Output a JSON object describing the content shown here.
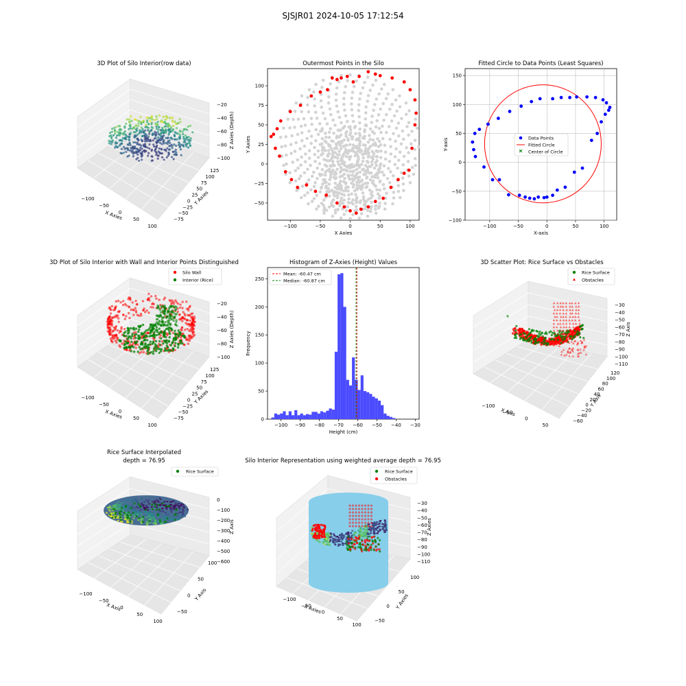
{
  "figure": {
    "suptitle": "SJSJR01 2024-10-05 17:12:54",
    "colors": {
      "wall": "#ff0000",
      "interior": "#008000",
      "gray": "#d3d3d3",
      "blue": "#0000ff",
      "hist": "#4b4bff",
      "silo": "#87ceeb"
    }
  },
  "chart_data": [
    {
      "id": "p1",
      "type": "scatter3d",
      "title": "3D Plot of Silo Interior(row data)",
      "xlabel": "X Axies",
      "ylabel": "Y Axies",
      "zlabel": "Z Axies (Depth)",
      "xticks": [
        "−100",
        "−50",
        "0",
        "50",
        "100"
      ],
      "yticks": [
        "−75",
        "−50",
        "−25",
        "0",
        "25",
        "50",
        "75",
        "100",
        "125"
      ],
      "zticks": [
        "−20",
        "−40",
        "−60",
        "−80",
        "−100"
      ],
      "zlim": [
        -110,
        -20
      ],
      "colormap": "viridis"
    },
    {
      "id": "p2",
      "type": "scatter",
      "title": "Outermost Points in the Silo",
      "xlabel": "X Axies",
      "ylabel": "Y Axies",
      "xlim": [
        -138,
        115
      ],
      "ylim": [
        -72,
        122
      ],
      "xticks": [
        -100,
        -50,
        0,
        50,
        100
      ],
      "yticks": [
        -50,
        -25,
        0,
        25,
        50,
        75,
        100
      ],
      "series": [
        {
          "kind": "all_points",
          "color": "#d3d3d3"
        },
        {
          "kind": "outermost",
          "color": "#ff0000",
          "x": [
            -132,
            -125,
            -118,
            -108,
            -98,
            -88,
            -73,
            -58,
            -40,
            -22,
            -10,
            0,
            10,
            18,
            30,
            42,
            55,
            68,
            80,
            90,
            98,
            103,
            108,
            110,
            108,
            100,
            90,
            70,
            50,
            42,
            30,
            15,
            5,
            -5,
            -15,
            -22,
            -30,
            -38,
            -50,
            -65,
            -83,
            -100,
            -116,
            -122,
            -128
          ],
          "y": [
            35,
            20,
            10,
            -10,
            -20,
            -30,
            -27,
            -35,
            -40,
            -50,
            -55,
            -60,
            -63,
            -58,
            -55,
            -48,
            -44,
            -30,
            -20,
            -12,
            -8,
            20,
            50,
            65,
            82,
            95,
            105,
            110,
            113,
            115,
            118,
            112,
            105,
            112,
            110,
            108,
            110,
            95,
            92,
            87,
            75,
            67,
            55,
            45,
            38
          ]
        }
      ]
    },
    {
      "id": "p3",
      "type": "scatter+fit",
      "title": "Fitted Circle to Data Points (Least Squares)",
      "xlabel": "X-axis",
      "ylabel": "Y-axis",
      "xlim": [
        -143,
        122
      ],
      "ylim": [
        -100,
        162
      ],
      "xticks": [
        -100,
        -50,
        0,
        50,
        100
      ],
      "yticks": [
        -100,
        -50,
        0,
        50,
        100,
        150
      ],
      "legend": [
        "Data Points",
        "Fitted Circle",
        "Center of Circle"
      ],
      "circle": {
        "cx": -7,
        "cy": 32,
        "r": 102
      },
      "center": {
        "x": -7,
        "y": 32
      },
      "points_x": [
        -130,
        -128,
        -125,
        -110,
        -95,
        -83,
        -67,
        -48,
        -38,
        -30,
        -22,
        -15,
        -5,
        0,
        10,
        18,
        32,
        48,
        62,
        78,
        88,
        95,
        102,
        108,
        110,
        104,
        98,
        85,
        70,
        52,
        40,
        25,
        10,
        -12,
        -27,
        -45,
        -65,
        -85,
        -103,
        -118,
        -126
      ],
      "points_y": [
        35,
        22,
        10,
        -8,
        -30,
        -30,
        -56,
        -57,
        -60,
        -62,
        -63,
        -60,
        -61,
        -60,
        -57,
        -48,
        -43,
        -17,
        -10,
        38,
        50,
        70,
        83,
        90,
        95,
        103,
        108,
        112,
        113,
        113,
        112,
        112,
        110,
        110,
        105,
        97,
        88,
        76,
        66,
        57,
        50
      ]
    },
    {
      "id": "p4",
      "type": "scatter3d",
      "title": "3D Plot of Silo Interior with Wall and Interior Points Distinguished",
      "xlabel": "X Axies",
      "ylabel": "Y Axies",
      "zlabel": "Z Axies (Depth)",
      "xticks": [
        "−100",
        "−50",
        "0",
        "50",
        "100"
      ],
      "yticks": [
        "−75",
        "−50",
        "−25",
        "0",
        "25",
        "50",
        "75",
        "100",
        "125"
      ],
      "zticks": [
        "−20",
        "−40",
        "−60",
        "−80",
        "−100"
      ],
      "legend": [
        "Silo Wall",
        "Interior (Rice)"
      ]
    },
    {
      "id": "p5",
      "type": "histogram",
      "title": "Histogram of Z-Axies (Height) Values",
      "xlabel": "Height (cm)",
      "ylabel": "Frequency",
      "xlim": [
        -107,
        -28
      ],
      "ylim": [
        0,
        270
      ],
      "xticks": [
        -100,
        -90,
        -80,
        -70,
        -60,
        -50,
        -40,
        -30
      ],
      "yticks": [
        0,
        50,
        100,
        150,
        200,
        250
      ],
      "bin_start": -105,
      "bin_width": 1.5,
      "counts": [
        3,
        10,
        8,
        10,
        14,
        7,
        14,
        7,
        16,
        7,
        10,
        7,
        9,
        8,
        13,
        13,
        10,
        14,
        12,
        15,
        19,
        17,
        120,
        258,
        260,
        200,
        70,
        60,
        110,
        70,
        52,
        78,
        50,
        48,
        45,
        40,
        37,
        33,
        25,
        10,
        6,
        4,
        2
      ],
      "mean": -60.47,
      "median": -60.87,
      "legend": [
        "Mean: -60.47 cm",
        "Median: -60.87 cm"
      ]
    },
    {
      "id": "p6",
      "type": "scatter3d",
      "title": "3D Scatter Plot: Rice Surface vs Obstacles",
      "xlabel": "X Axis",
      "ylabel": "Y Axis",
      "zlabel": "Z Axis",
      "xticks": [
        "−100",
        "−50",
        "0",
        "50"
      ],
      "yticks": [
        "−60",
        "−40",
        "−20",
        "0",
        "20",
        "40",
        "60",
        "80",
        "100",
        "120"
      ],
      "zticks": [
        "−30",
        "−40",
        "−50",
        "−60",
        "−70",
        "−80",
        "−90",
        "−100",
        "−110"
      ],
      "legend": [
        "Rice Surface",
        "Obstacles"
      ]
    },
    {
      "id": "p7",
      "type": "surface3d",
      "title": "Rice Surface Interpolated",
      "subtitle": "depth = 76.95",
      "xlabel": "X Axis",
      "ylabel": "Y Axis",
      "zlabel": "Z Axis",
      "xticks": [
        "−100",
        "−50",
        "0",
        "50",
        "100"
      ],
      "yticks": [
        "−50",
        "0",
        "50",
        "100"
      ],
      "zticks": [
        "0",
        "−100",
        "−200",
        "−300",
        "−400",
        "−500",
        "−600"
      ],
      "legend": [
        "Rice Surface"
      ]
    },
    {
      "id": "p8",
      "type": "surface3d",
      "title": "Silo Interior Representation using weighted average depth = 76.95",
      "xlabel": "X Axies",
      "ylabel": "Y Axies",
      "zlabel": "Z Axies",
      "xticks": [
        "−100",
        "−50",
        "0",
        "50",
        "100"
      ],
      "yticks": [
        "−50",
        "0",
        "50",
        "100"
      ],
      "zticks": [
        "−30",
        "−40",
        "−50",
        "−60",
        "−70",
        "−80",
        "−90",
        "−100",
        "−110"
      ],
      "legend": [
        "Rice Surface",
        "Obstacles"
      ]
    }
  ]
}
